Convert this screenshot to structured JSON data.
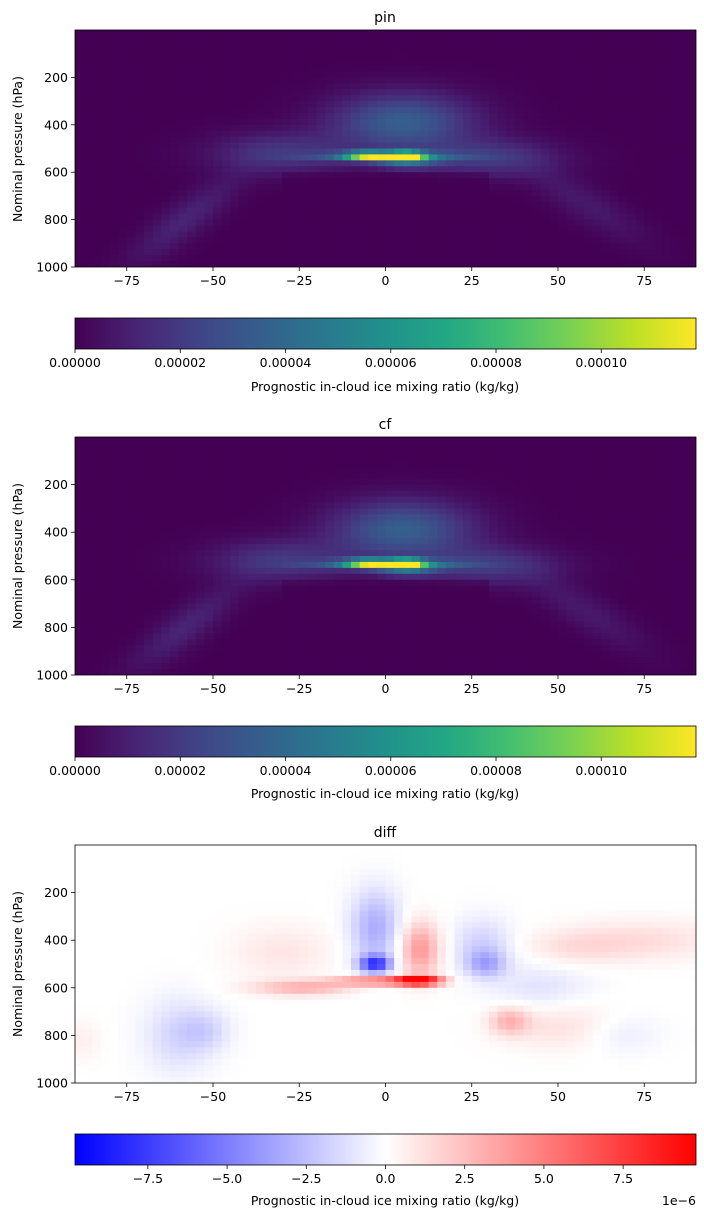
{
  "chart_data": [
    {
      "type": "heatmap",
      "title": "pin",
      "ylabel": "Nominal pressure (hPa)",
      "xlabel": "",
      "x_ticks": [
        -75,
        -50,
        -25,
        0,
        25,
        50,
        75
      ],
      "y_ticks": [
        200,
        400,
        600,
        800,
        1000
      ],
      "xlim": [
        -90,
        90
      ],
      "ylim": [
        1000,
        0
      ],
      "y_inverted": true,
      "colormap": "viridis",
      "colorbar": {
        "orientation": "horizontal",
        "label": "Prognostic in-cloud ice mixing ratio (kg/kg)",
        "range": [
          0,
          0.000118
        ],
        "ticks": [
          "0.00000",
          "0.00002",
          "0.00004",
          "0.00006",
          "0.00008",
          "0.00010"
        ],
        "tick_values": [
          0,
          2e-05,
          4e-05,
          6e-05,
          8e-05,
          0.0001
        ]
      },
      "features": [
        {
          "lat": 6,
          "p": 530,
          "value": 0.000118,
          "note": "peak"
        },
        {
          "lat": -5,
          "p": 530,
          "value": 8e-05
        },
        {
          "lat": 6,
          "p": 400,
          "value": 4e-05
        },
        {
          "lat": -60,
          "p": 850,
          "value": 1e-05
        },
        {
          "lat": 55,
          "p": 750,
          "value": 1e-05
        }
      ]
    },
    {
      "type": "heatmap",
      "title": "cf",
      "ylabel": "Nominal pressure (hPa)",
      "xlabel": "",
      "x_ticks": [
        -75,
        -50,
        -25,
        0,
        25,
        50,
        75
      ],
      "y_ticks": [
        200,
        400,
        600,
        800,
        1000
      ],
      "xlim": [
        -90,
        90
      ],
      "ylim": [
        1000,
        0
      ],
      "y_inverted": true,
      "colormap": "viridis",
      "colorbar": {
        "orientation": "horizontal",
        "label": "Prognostic in-cloud ice mixing ratio (kg/kg)",
        "range": [
          0,
          0.000118
        ],
        "ticks": [
          "0.00000",
          "0.00002",
          "0.00004",
          "0.00006",
          "0.00008",
          "0.00010"
        ],
        "tick_values": [
          0,
          2e-05,
          4e-05,
          6e-05,
          8e-05,
          0.0001
        ]
      },
      "features": [
        {
          "lat": 6,
          "p": 530,
          "value": 0.000118,
          "note": "peak"
        },
        {
          "lat": -5,
          "p": 530,
          "value": 8e-05
        },
        {
          "lat": 6,
          "p": 400,
          "value": 4e-05
        },
        {
          "lat": -60,
          "p": 850,
          "value": 1e-05
        },
        {
          "lat": 55,
          "p": 750,
          "value": 1e-05
        }
      ]
    },
    {
      "type": "heatmap",
      "title": "diff",
      "ylabel": "Nominal pressure (hPa)",
      "xlabel": "",
      "x_ticks": [
        -75,
        -50,
        -25,
        0,
        25,
        50,
        75
      ],
      "y_ticks": [
        200,
        400,
        600,
        800,
        1000
      ],
      "xlim": [
        -90,
        90
      ],
      "ylim": [
        1000,
        0
      ],
      "y_inverted": true,
      "colormap": "bwr",
      "colorbar": {
        "orientation": "horizontal",
        "label": "Prognostic in-cloud ice mixing ratio (kg/kg)",
        "range": [
          -9.8e-06,
          9.8e-06
        ],
        "ticks": [
          "−7.5",
          "−5.0",
          "−2.5",
          "0.0",
          "2.5",
          "5.0",
          "7.5"
        ],
        "tick_values": [
          -7.5e-06,
          -5e-06,
          -2.5e-06,
          0,
          2.5e-06,
          5e-06,
          7.5e-06
        ],
        "offset_text": "1e−6"
      },
      "features": [
        {
          "lat": 10,
          "p": 570,
          "value": 9.5e-06
        },
        {
          "lat": -3,
          "p": 500,
          "value": -8e-06
        },
        {
          "lat": -2,
          "p": 350,
          "value": -3e-06
        },
        {
          "lat": 10,
          "p": 450,
          "value": 4e-06
        },
        {
          "lat": 28,
          "p": 500,
          "value": -3e-06
        },
        {
          "lat": -25,
          "p": 600,
          "value": 3e-06
        },
        {
          "lat": 36,
          "p": 750,
          "value": 3e-06
        },
        {
          "lat": -60,
          "p": 850,
          "value": -1.5e-06
        },
        {
          "lat": 75,
          "p": 400,
          "value": 1.5e-06
        }
      ]
    }
  ]
}
